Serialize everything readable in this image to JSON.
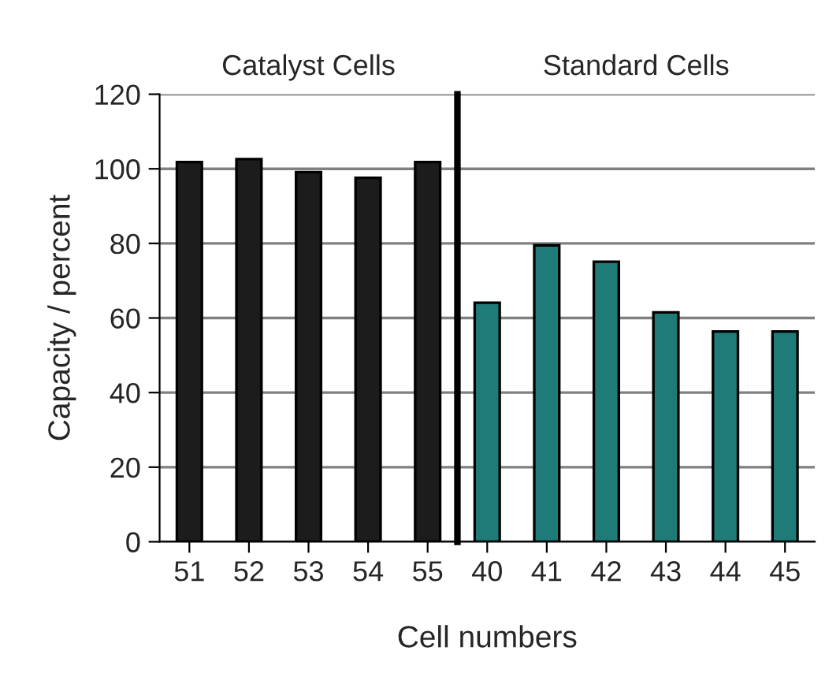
{
  "chart_data": [
    {
      "type": "bar",
      "title": "Catalyst Cells",
      "ylabel": "Capacity / percent",
      "categories": [
        "51",
        "52",
        "53",
        "54",
        "55"
      ],
      "values": [
        101.8,
        102.6,
        99.1,
        97.6,
        101.8
      ],
      "colors": [
        "#1c1c1c",
        "#1c1c1c",
        "#1c1c1c",
        "#1c1c1c",
        "#1c1c1c"
      ],
      "ylim": [
        0,
        120
      ],
      "yticks": [
        0,
        20,
        40,
        60,
        80,
        100,
        120
      ],
      "grid": "y"
    },
    {
      "type": "bar",
      "title": "Standard Cells",
      "xlabel": "Cell numbers",
      "categories": [
        "40",
        "41",
        "42",
        "43",
        "44",
        "45"
      ],
      "values": [
        64.1,
        79.5,
        75.1,
        61.5,
        56.4,
        56.4
      ],
      "colors": [
        "#1f7b78",
        "#1f7b78",
        "#1f7b78",
        "#1f7b78",
        "#1f7b78",
        "#1f7b78"
      ],
      "ylim": [
        0,
        120
      ],
      "grid": "y",
      "tick_labels": "x"
    }
  ]
}
